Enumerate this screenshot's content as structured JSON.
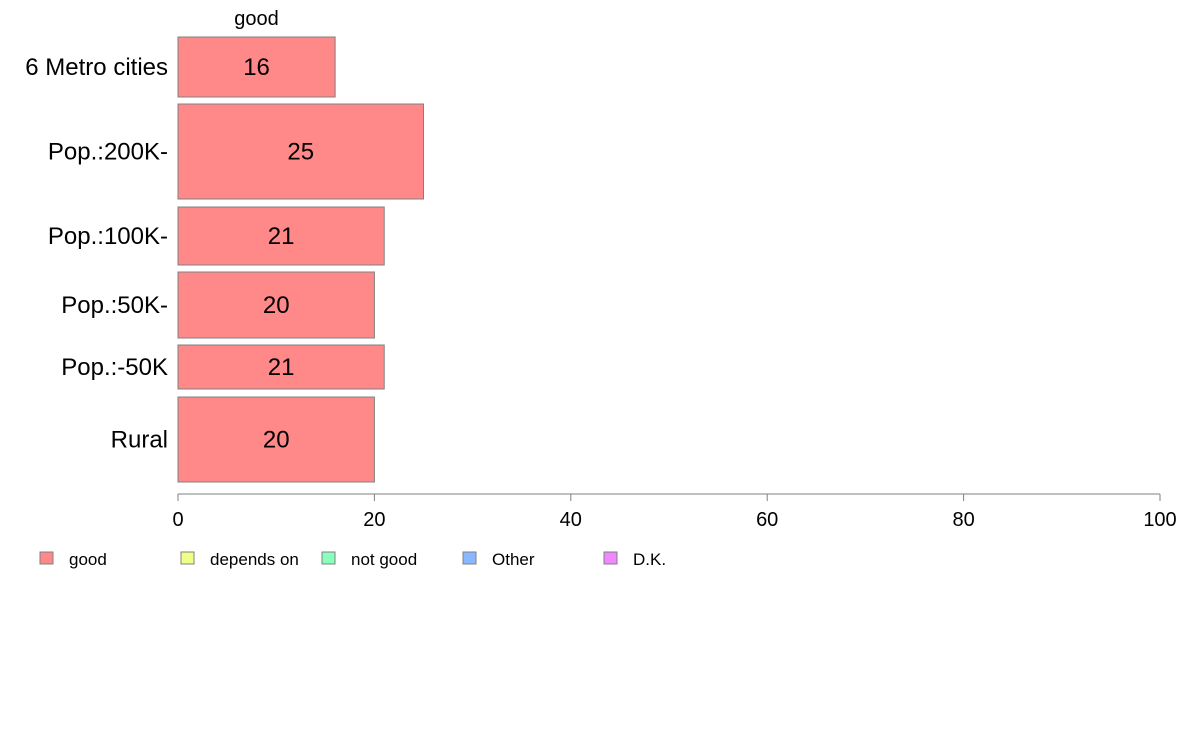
{
  "chart_data": {
    "type": "bar",
    "orientation": "horizontal",
    "series_title": "good",
    "categories": [
      "6 Metro cities",
      "Pop.:200K-",
      "Pop.:100K-",
      "Pop.:50K-",
      "Pop.:-50K",
      "Rural"
    ],
    "series": [
      {
        "name": "good",
        "values": [
          16,
          25,
          21,
          20,
          21,
          20
        ],
        "color": "#ff8888"
      }
    ],
    "xlim": [
      0,
      100
    ],
    "xticks": [
      0,
      20,
      40,
      60,
      80,
      100
    ],
    "grid": false,
    "legend_position": "bottom-left",
    "legend": [
      {
        "label": "good",
        "color": "#ff8888"
      },
      {
        "label": "depends on",
        "color": "#f0ff88"
      },
      {
        "label": "not good",
        "color": "#88ffbb"
      },
      {
        "label": "Other",
        "color": "#88b8ff"
      },
      {
        "label": "D.K.",
        "color": "#f088ff"
      }
    ]
  }
}
